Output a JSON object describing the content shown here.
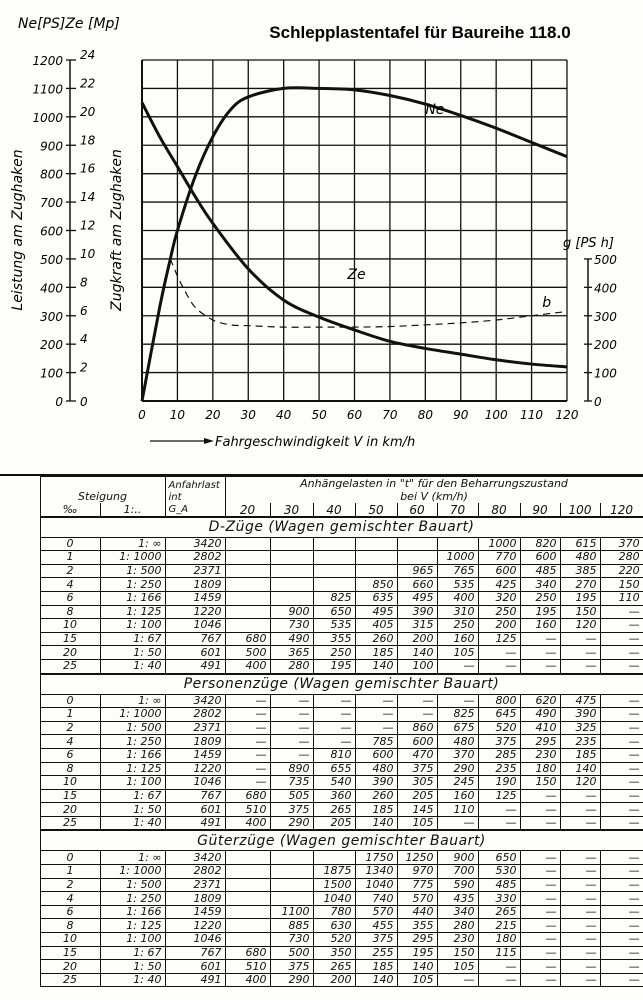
{
  "title": "Schlepplastentafel für Baureihe 118.0",
  "chart_data": {
    "type": "line",
    "title": "Schlepplastentafel für Baureihe 118.0",
    "xlabel": "Fahrgeschwindigkeit   V in  km/h",
    "x_ticks": [
      0,
      10,
      20,
      30,
      40,
      50,
      60,
      70,
      80,
      90,
      100,
      110,
      120
    ],
    "xlim": [
      0,
      120
    ],
    "left_axis_units": "Ne[PS]Ze [Mp]",
    "ylabel_ne": "Leistung am Zughaken",
    "ylabel_ze": "Zugkraft am Zughaken",
    "ne_ticks": [
      0,
      100,
      200,
      300,
      400,
      500,
      600,
      700,
      800,
      900,
      1000,
      1100,
      1200
    ],
    "ze_ticks": [
      0,
      2,
      4,
      6,
      8,
      10,
      12,
      14,
      16,
      18,
      20,
      22,
      24
    ],
    "ylim_ne": [
      0,
      1200
    ],
    "right_axis_label": "g [PS h]",
    "g_ticks": [
      0,
      100,
      200,
      300,
      400,
      500
    ],
    "grid": true,
    "series": [
      {
        "name": "Ne",
        "unit": "PS",
        "style": "solid",
        "x": [
          0,
          5,
          8,
          10,
          15,
          20,
          25,
          30,
          40,
          50,
          60,
          70,
          80,
          90,
          100,
          110,
          120
        ],
        "y": [
          0,
          330,
          500,
          600,
          790,
          930,
          1025,
          1070,
          1100,
          1100,
          1095,
          1075,
          1045,
          1005,
          960,
          910,
          860
        ]
      },
      {
        "name": "Ze",
        "unit": "Mp",
        "style": "solid",
        "x": [
          0,
          5,
          10,
          15,
          20,
          30,
          40,
          50,
          60,
          70,
          80,
          90,
          100,
          110,
          120
        ],
        "y": [
          21,
          18.6,
          16.5,
          14.4,
          12.5,
          9.3,
          7.1,
          5.9,
          5.0,
          4.2,
          3.7,
          3.3,
          2.9,
          2.6,
          2.4
        ]
      },
      {
        "name": "b",
        "unit": "g/PSh",
        "style": "dashed",
        "x": [
          8,
          10,
          12,
          15,
          20,
          25,
          30,
          40,
          50,
          60,
          70,
          80,
          90,
          100,
          110,
          120
        ],
        "y": [
          500,
          440,
          390,
          330,
          285,
          268,
          265,
          260,
          260,
          260,
          262,
          268,
          275,
          285,
          300,
          315
        ]
      }
    ]
  },
  "table": {
    "header": {
      "steigung": "Steigung",
      "permil": "‰",
      "ratio": "1:..",
      "anfahrlast_1": "Anfahrlast",
      "anfahrlast_2": "int",
      "anfahrlast_3": "G_A",
      "loads_title_1": "Anhängelasten in \"t\" für den Beharrungszustand",
      "loads_title_2": "bei V (km/h)",
      "speeds": [
        "20",
        "30",
        "40",
        "50",
        "60",
        "70",
        "80",
        "90",
        "100",
        "120"
      ]
    },
    "sections": [
      {
        "title": "D-Züge (Wagen gemischter Bauart)",
        "rows": [
          [
            "0",
            "1: ∞",
            "3420",
            "",
            "",
            "",
            "",
            "",
            "",
            "1000",
            "820",
            "615",
            "370"
          ],
          [
            "1",
            "1: 1000",
            "2802",
            "",
            "",
            "",
            "",
            "",
            "1000",
            "770",
            "600",
            "480",
            "280"
          ],
          [
            "2",
            "1: 500",
            "2371",
            "",
            "",
            "",
            "",
            "965",
            "765",
            "600",
            "485",
            "385",
            "220"
          ],
          [
            "4",
            "1: 250",
            "1809",
            "",
            "",
            "",
            "850",
            "660",
            "535",
            "425",
            "340",
            "270",
            "150"
          ],
          [
            "6",
            "1: 166",
            "1459",
            "",
            "",
            "825",
            "635",
            "495",
            "400",
            "320",
            "250",
            "195",
            "110"
          ],
          [
            "8",
            "1: 125",
            "1220",
            "",
            "900",
            "650",
            "495",
            "390",
            "310",
            "250",
            "195",
            "150",
            "—"
          ],
          [
            "10",
            "1: 100",
            "1046",
            "",
            "730",
            "535",
            "405",
            "315",
            "250",
            "200",
            "160",
            "120",
            "—"
          ],
          [
            "15",
            "1: 67",
            "767",
            "680",
            "490",
            "355",
            "260",
            "200",
            "160",
            "125",
            "—",
            "—",
            "—"
          ],
          [
            "20",
            "1: 50",
            "601",
            "500",
            "365",
            "250",
            "185",
            "140",
            "105",
            "—",
            "—",
            "—",
            "—"
          ],
          [
            "25",
            "1: 40",
            "491",
            "400",
            "280",
            "195",
            "140",
            "100",
            "—",
            "—",
            "—",
            "—",
            "—"
          ]
        ]
      },
      {
        "title": "Personenzüge (Wagen gemischter Bauart)",
        "rows": [
          [
            "0",
            "1: ∞",
            "3420",
            "—",
            "—",
            "—",
            "—",
            "—",
            "—",
            "800",
            "620",
            "475",
            "—"
          ],
          [
            "1",
            "1: 1000",
            "2802",
            "—",
            "—",
            "—",
            "—",
            "—",
            "825",
            "645",
            "490",
            "390",
            "—"
          ],
          [
            "2",
            "1: 500",
            "2371",
            "—",
            "—",
            "—",
            "—",
            "860",
            "675",
            "520",
            "410",
            "325",
            "—"
          ],
          [
            "4",
            "1: 250",
            "1809",
            "—",
            "—",
            "—",
            "785",
            "600",
            "480",
            "375",
            "295",
            "235",
            "—"
          ],
          [
            "6",
            "1: 166",
            "1459",
            "—",
            "—",
            "810",
            "600",
            "470",
            "370",
            "285",
            "230",
            "185",
            "—"
          ],
          [
            "8",
            "1: 125",
            "1220",
            "—",
            "890",
            "655",
            "480",
            "375",
            "290",
            "235",
            "180",
            "140",
            "—"
          ],
          [
            "10",
            "1: 100",
            "1046",
            "—",
            "735",
            "540",
            "390",
            "305",
            "245",
            "190",
            "150",
            "120",
            "—"
          ],
          [
            "15",
            "1: 67",
            "767",
            "680",
            "505",
            "360",
            "260",
            "205",
            "160",
            "125",
            "—",
            "—",
            "—"
          ],
          [
            "20",
            "1: 50",
            "601",
            "510",
            "375",
            "265",
            "185",
            "145",
            "110",
            "—",
            "—",
            "—",
            "—"
          ],
          [
            "25",
            "1: 40",
            "491",
            "400",
            "290",
            "205",
            "140",
            "105",
            "—",
            "—",
            "—",
            "—",
            "—"
          ]
        ]
      },
      {
        "title": "Güterzüge (Wagen gemischter Bauart)",
        "rows": [
          [
            "0",
            "1: ∞",
            "3420",
            "",
            "",
            "",
            "1750",
            "1250",
            "900",
            "650",
            "—",
            "—",
            "—"
          ],
          [
            "1",
            "1: 1000",
            "2802",
            "",
            "",
            "1875",
            "1340",
            "970",
            "700",
            "530",
            "—",
            "—",
            "—"
          ],
          [
            "2",
            "1: 500",
            "2371",
            "",
            "",
            "1500",
            "1040",
            "775",
            "590",
            "485",
            "—",
            "—",
            "—"
          ],
          [
            "4",
            "1: 250",
            "1809",
            "",
            "",
            "1040",
            "740",
            "570",
            "435",
            "330",
            "—",
            "—",
            "—"
          ],
          [
            "6",
            "1: 166",
            "1459",
            "",
            "1100",
            "780",
            "570",
            "440",
            "340",
            "265",
            "—",
            "—",
            "—"
          ],
          [
            "8",
            "1: 125",
            "1220",
            "",
            "885",
            "630",
            "455",
            "355",
            "280",
            "215",
            "—",
            "—",
            "—"
          ],
          [
            "10",
            "1: 100",
            "1046",
            "",
            "730",
            "520",
            "375",
            "295",
            "230",
            "180",
            "—",
            "—",
            "—"
          ],
          [
            "15",
            "1: 67",
            "767",
            "680",
            "500",
            "350",
            "255",
            "195",
            "150",
            "115",
            "—",
            "—",
            "—"
          ],
          [
            "20",
            "1: 50",
            "601",
            "510",
            "375",
            "265",
            "185",
            "140",
            "105",
            "—",
            "—",
            "—",
            "—"
          ],
          [
            "25",
            "1: 40",
            "491",
            "400",
            "290",
            "200",
            "140",
            "105",
            "—",
            "—",
            "—",
            "—",
            "—"
          ]
        ]
      }
    ]
  }
}
